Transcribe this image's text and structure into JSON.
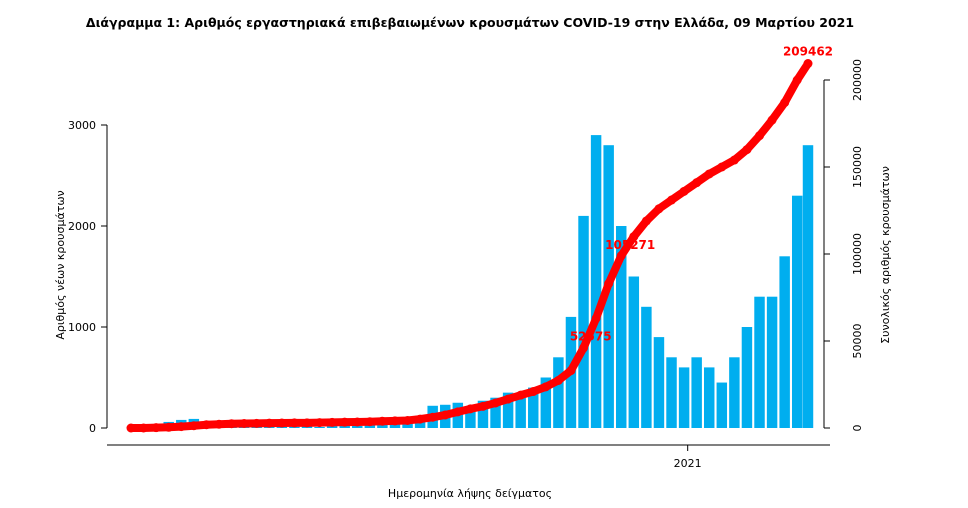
{
  "chart_data": {
    "type": "bar",
    "title": "Διάγραμμα 1: Αριθμός εργαστηριακά επιβεβαιωμένων κρουσμάτων COVID-19 στην Ελλάδα, 09 Μαρτίου 2021",
    "xlabel": "Ημερομηνία λήψης δείγματος",
    "ylabel": "Αριθμός νέων κρουσμάτων",
    "y2label": "Συνολικός αριθμός κρουσμάτων",
    "x_ticks": [
      "2021"
    ],
    "y_ticks": [
      0,
      1000,
      2000,
      3000
    ],
    "y2_ticks": [
      0,
      50000,
      100000,
      150000,
      200000
    ],
    "y2_tick_labels": [
      "0",
      "50000",
      "100000",
      "150000",
      "200000"
    ],
    "ylim": [
      0,
      3600
    ],
    "y2lim": [
      0,
      209462
    ],
    "xlim": [
      "2020-02-26",
      "2021-03-09"
    ],
    "colors": {
      "bars": "#00AEEF",
      "cumulative": "#FF0000"
    },
    "annotations": [
      "52575",
      "105271",
      "209462"
    ],
    "annotation_values": [
      {
        "date": "2020-11-08",
        "cumulative": 52575,
        "label": "52575"
      },
      {
        "date": "2020-11-30",
        "cumulative": 105271,
        "label": "105271"
      },
      {
        "date": "2021-03-09",
        "cumulative": 209462,
        "label": "209462"
      }
    ],
    "dates": [
      "2020-02-26",
      "2020-03-04",
      "2020-03-11",
      "2020-03-18",
      "2020-03-25",
      "2020-04-01",
      "2020-04-08",
      "2020-04-15",
      "2020-04-22",
      "2020-04-29",
      "2020-05-06",
      "2020-05-13",
      "2020-05-20",
      "2020-05-27",
      "2020-06-03",
      "2020-06-10",
      "2020-06-17",
      "2020-06-24",
      "2020-07-01",
      "2020-07-08",
      "2020-07-15",
      "2020-07-22",
      "2020-07-29",
      "2020-08-05",
      "2020-08-12",
      "2020-08-19",
      "2020-08-26",
      "2020-09-02",
      "2020-09-09",
      "2020-09-16",
      "2020-09-23",
      "2020-09-30",
      "2020-10-07",
      "2020-10-14",
      "2020-10-21",
      "2020-10-28",
      "2020-11-04",
      "2020-11-11",
      "2020-11-18",
      "2020-11-25",
      "2020-12-02",
      "2020-12-09",
      "2020-12-16",
      "2020-12-23",
      "2020-12-30",
      "2021-01-06",
      "2021-01-13",
      "2021-01-20",
      "2021-01-27",
      "2021-02-03",
      "2021-02-10",
      "2021-02-17",
      "2021-02-24",
      "2021-03-03",
      "2021-03-09"
    ],
    "series": [
      {
        "name": "new_cases",
        "type": "bar",
        "values": [
          1,
          10,
          40,
          60,
          80,
          90,
          60,
          50,
          40,
          15,
          15,
          10,
          10,
          12,
          15,
          10,
          20,
          25,
          20,
          30,
          30,
          40,
          60,
          120,
          220,
          230,
          250,
          180,
          270,
          300,
          350,
          300,
          400,
          500,
          700,
          1100,
          2100,
          2900,
          2800,
          2000,
          1500,
          1200,
          900,
          700,
          600,
          700,
          600,
          450,
          700,
          1000,
          1300,
          1300,
          1700,
          2300,
          2800
        ]
      },
      {
        "name": "cumulative",
        "type": "line",
        "values": [
          1,
          31,
          190,
          418,
          821,
          1314,
          1884,
          2170,
          2463,
          2591,
          2678,
          2770,
          2850,
          2915,
          2980,
          3088,
          3203,
          3343,
          3458,
          3623,
          3910,
          4077,
          4337,
          5123,
          6177,
          7472,
          9280,
          10998,
          12452,
          14400,
          16627,
          18886,
          20947,
          23651,
          27334,
          33000,
          46000,
          63000,
          83000,
          99000,
          110000,
          119000,
          126000,
          131000,
          136000,
          141000,
          146000,
          150000,
          154000,
          160000,
          168000,
          177000,
          187000,
          200000,
          209462
        ]
      }
    ]
  }
}
